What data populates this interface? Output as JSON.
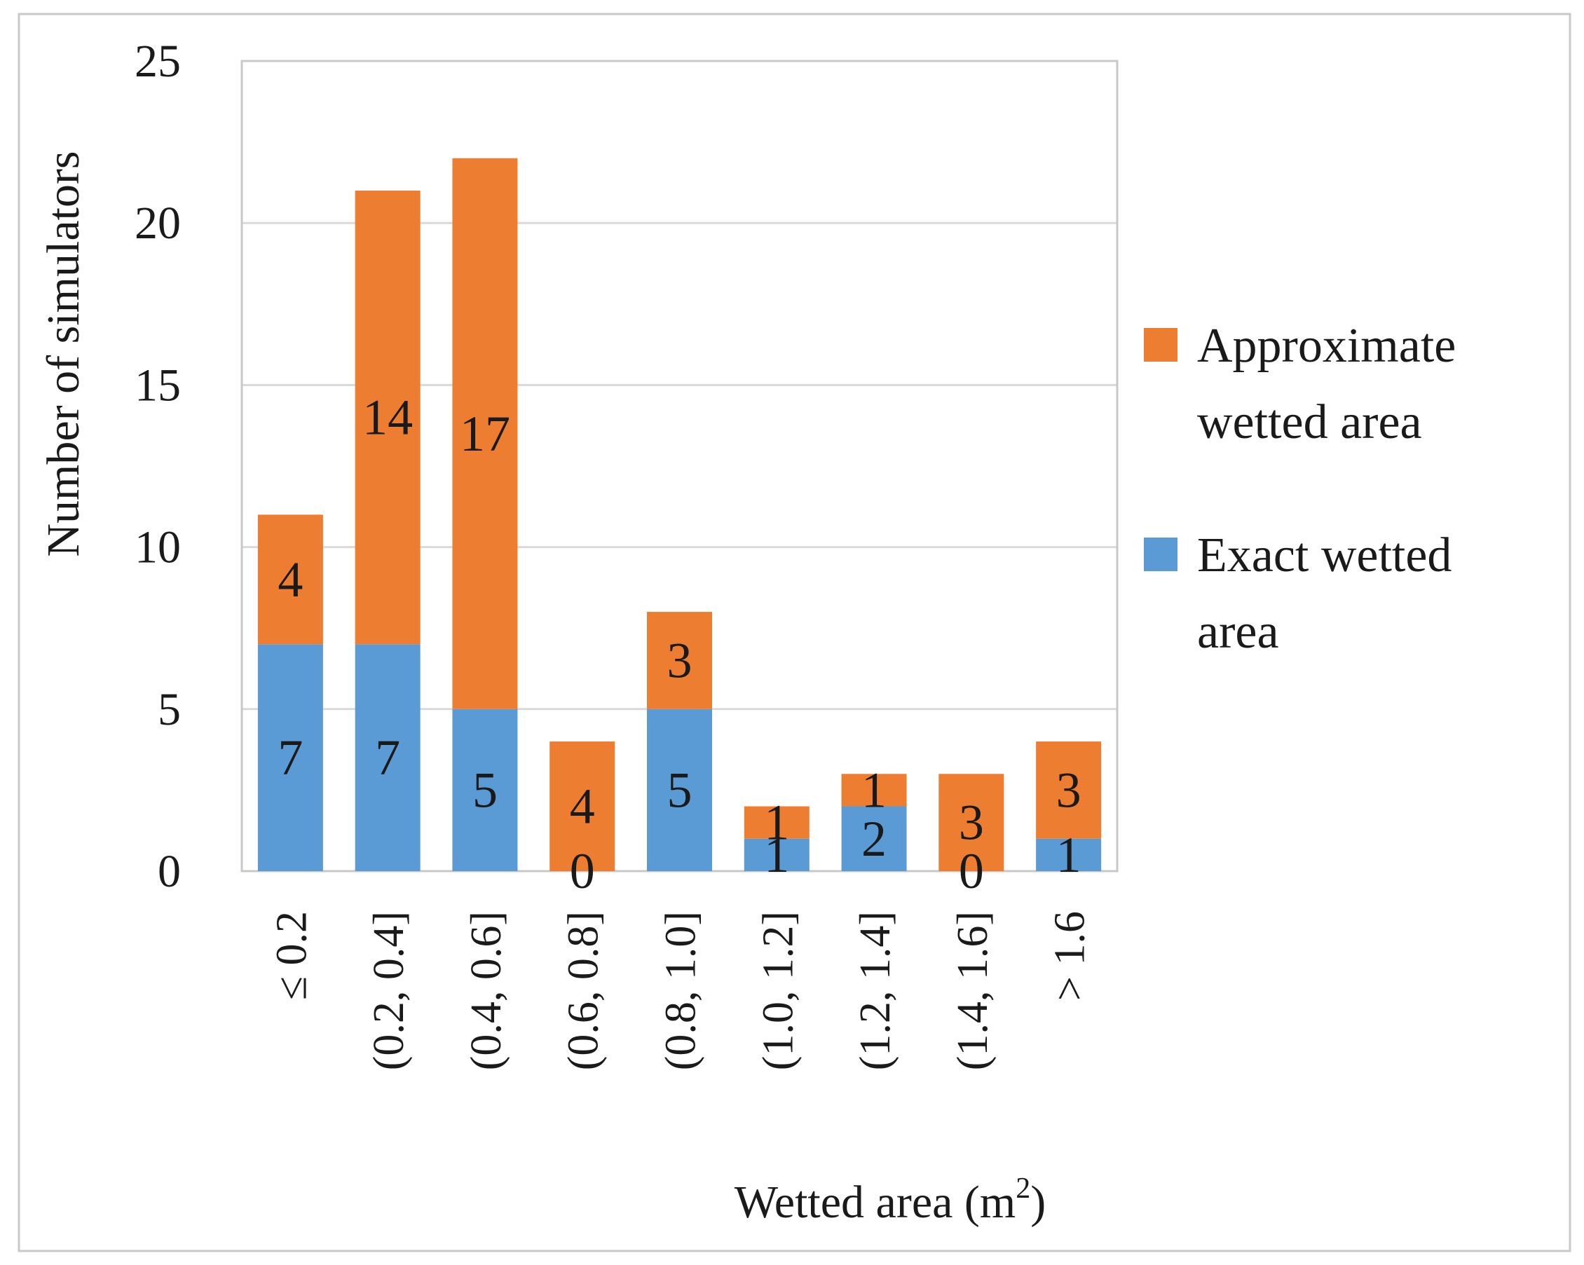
{
  "chart_data": {
    "type": "bar",
    "stacked": true,
    "title": "",
    "xlabel": "Wetted area (m",
    "xlabel_sup": "2",
    "xlabel_close": ")",
    "ylabel": "Number of simulators",
    "ylim": [
      0,
      25
    ],
    "yticks": [
      0,
      5,
      10,
      15,
      20,
      25
    ],
    "grid": true,
    "legend_position": "right",
    "categories": [
      "≤ 0.2",
      "(0.2, 0.4]",
      "(0.4, 0.6]",
      "(0.6, 0.8]",
      "(0.8, 1.0]",
      "(1.0, 1.2]",
      "(1.2, 1.4]",
      "(1.4, 1.6]",
      "> 1.6"
    ],
    "series": [
      {
        "name": "Exact wetted area",
        "legend_lines": [
          "Exact wetted",
          "area"
        ],
        "color": "#5b9bd5",
        "values": [
          7,
          7,
          5,
          0,
          5,
          1,
          2,
          0,
          1
        ]
      },
      {
        "name": "Approximate wetted area",
        "legend_lines": [
          "Approximate",
          "wetted area"
        ],
        "color": "#ed7d31",
        "values": [
          4,
          14,
          17,
          4,
          3,
          1,
          1,
          3,
          3
        ]
      }
    ]
  },
  "colors": {
    "exact": "#5b9bd5",
    "approximate": "#ed7d31",
    "grid": "#d9d9d9",
    "frame": "#bfbfbf"
  }
}
